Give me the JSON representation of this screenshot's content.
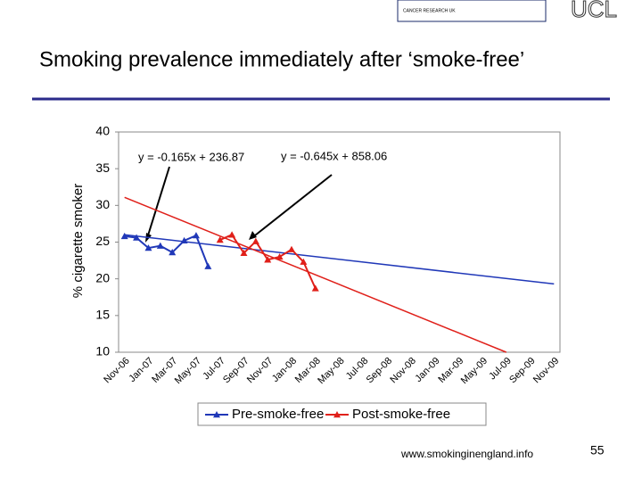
{
  "header": {
    "logos": [
      "CANCER RESEARCH UK",
      "UCL"
    ]
  },
  "title": "Smoking prevalence immediately after ‘smoke-free’",
  "chart_data": {
    "type": "line",
    "ylabel": "% cigarette smoker",
    "categories": [
      "Nov-06",
      null,
      "Jan-07",
      null,
      "Mar-07",
      null,
      "May-07",
      null,
      "Jul-07",
      null,
      "Sep-07",
      null,
      "Nov-07",
      null,
      "Jan-08",
      null,
      "Mar-08",
      null,
      "May-08",
      null,
      "Jul-08",
      null,
      "Sep-08",
      null,
      "Nov-08",
      null,
      "Jan-09",
      null,
      "Mar-09",
      null,
      "May-09",
      null,
      "Jul-09",
      null,
      "Sep-09",
      null,
      "Nov-09"
    ],
    "series": [
      {
        "name": "Pre-smoke-free",
        "color": "#2038b8",
        "values": [
          25.8,
          25.6,
          24.2,
          24.5,
          23.6,
          25.2,
          25.9,
          21.7,
          null,
          null,
          null,
          null,
          null,
          null,
          null,
          null,
          null,
          null,
          null,
          null,
          null,
          null,
          null,
          null,
          null,
          null,
          null,
          null,
          null,
          null,
          null,
          null,
          null,
          null,
          null,
          null,
          null
        ]
      },
      {
        "name": "Post-smoke-free",
        "color": "#e0201a",
        "values": [
          null,
          null,
          null,
          null,
          null,
          null,
          null,
          null,
          25.3,
          26.0,
          23.5,
          25.1,
          22.6,
          23.0,
          24.0,
          22.3,
          18.7,
          null,
          null,
          null,
          null,
          null,
          null,
          null,
          null,
          null,
          null,
          null,
          null,
          null,
          null,
          null,
          null,
          null,
          null,
          null,
          null
        ]
      }
    ],
    "trendlines": [
      {
        "color": "#2038b8",
        "from": [
          0,
          26.0
        ],
        "to": [
          36,
          19.3
        ]
      },
      {
        "color": "#e0201a",
        "from": [
          0,
          31.1
        ],
        "to": [
          32,
          10
        ]
      }
    ],
    "annotations": [
      "y = -0.165x + 236.87",
      "y = -0.645x + 858.06"
    ],
    "ylim": [
      10,
      40
    ],
    "yticks": [
      10,
      15,
      20,
      25,
      30,
      35,
      40
    ],
    "legend": "bottom"
  },
  "footer": {
    "url": "www.smokinginengland.info",
    "page": "55"
  }
}
